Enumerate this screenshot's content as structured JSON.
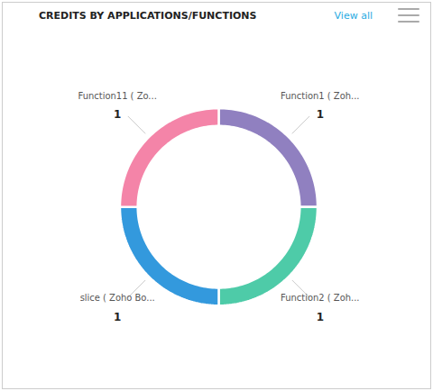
{
  "chart_data": {
    "type": "donut",
    "title": "CREDITS BY APPLICATIONS/FUNCTIONS",
    "annotations": [
      "View all"
    ],
    "categories": [
      "Function1 ( Zoh...",
      "Function2 ( Zoh...",
      "slice ( Zoho Bo...",
      "Function11 ( Zo..."
    ],
    "values": [
      1,
      1,
      1,
      1
    ],
    "colors": [
      "#9080C0",
      "#4ECBA8",
      "#3399DD",
      "#F484A8"
    ],
    "data_labels": true
  }
}
